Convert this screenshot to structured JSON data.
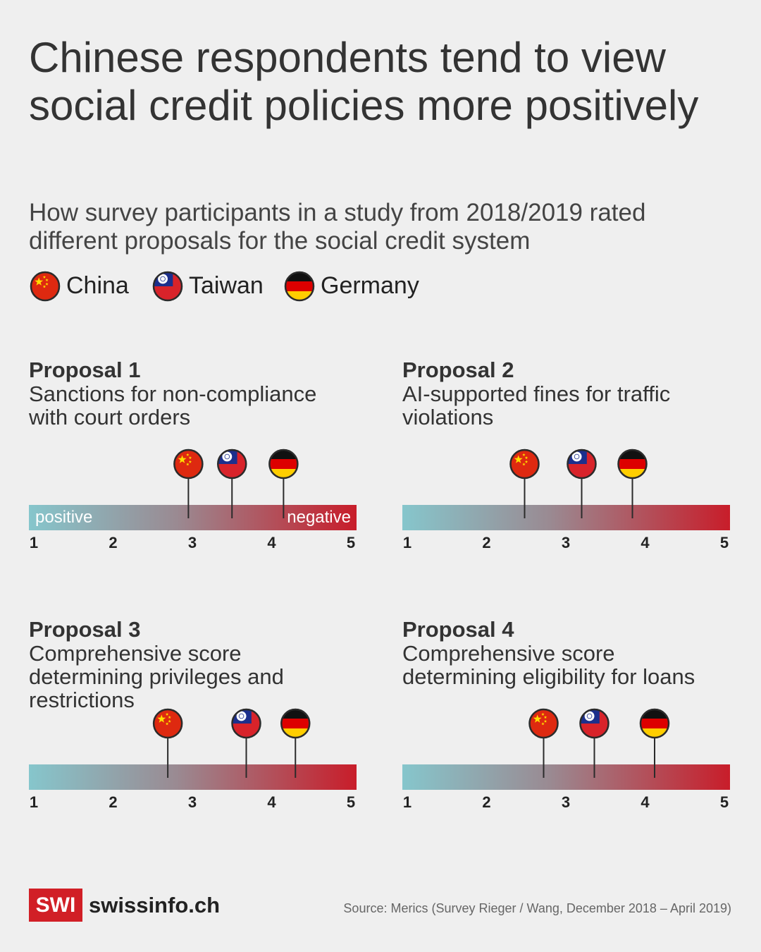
{
  "title": "Chinese respondents tend to view social credit policies more positively",
  "subtitle": "How survey participants in a study from 2018/2019 rated different proposals for the social credit system",
  "chart_data": [
    {
      "type": "dot",
      "title": "Proposal 1",
      "subtitle": "Sanctions for non-compliance with court orders",
      "series": [
        {
          "name": "China",
          "values": [
            2.95
          ]
        },
        {
          "name": "Taiwan",
          "values": [
            3.5
          ]
        },
        {
          "name": "Germany",
          "values": [
            4.15
          ]
        }
      ],
      "xlim": [
        1,
        5
      ],
      "xticks": [
        1,
        2,
        3,
        4,
        5
      ],
      "scale_labels": [
        "positive",
        "negative"
      ]
    },
    {
      "type": "dot",
      "title": "Proposal 2",
      "subtitle": "AI-supported fines for traffic violations",
      "series": [
        {
          "name": "China",
          "values": [
            2.48
          ]
        },
        {
          "name": "Taiwan",
          "values": [
            3.2
          ]
        },
        {
          "name": "Germany",
          "values": [
            3.84
          ]
        }
      ],
      "xlim": [
        1,
        5
      ],
      "xticks": [
        1,
        2,
        3,
        4,
        5
      ]
    },
    {
      "type": "dot",
      "title": "Proposal 3",
      "subtitle": "Comprehensive score determining privileges and restrictions",
      "series": [
        {
          "name": "China",
          "values": [
            2.69
          ]
        },
        {
          "name": "Taiwan",
          "values": [
            3.68
          ]
        },
        {
          "name": "Germany",
          "values": [
            4.3
          ]
        }
      ],
      "xlim": [
        1,
        5
      ],
      "xticks": [
        1,
        2,
        3,
        4,
        5
      ]
    },
    {
      "type": "dot",
      "title": "Proposal 4",
      "subtitle": "Comprehensive score determining eligibility for loans",
      "series": [
        {
          "name": "China",
          "values": [
            2.72
          ]
        },
        {
          "name": "Taiwan",
          "values": [
            3.36
          ]
        },
        {
          "name": "Germany",
          "values": [
            4.12
          ]
        }
      ],
      "xlim": [
        1,
        5
      ],
      "xticks": [
        1,
        2,
        3,
        4,
        5
      ]
    }
  ],
  "footer": {
    "logo": "SWI",
    "site": "swissinfo.ch",
    "source": "Source: Merics (Survey Rieger / Wang, December 2018 – April 2019)"
  }
}
